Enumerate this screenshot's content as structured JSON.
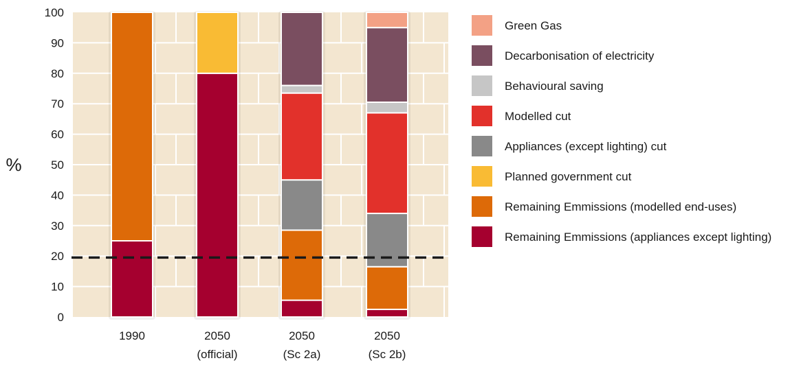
{
  "chart_data": {
    "type": "bar",
    "stacked": true,
    "title": "",
    "xlabel": "",
    "ylabel": "%",
    "ylim": [
      0,
      100
    ],
    "yticks": [
      0,
      10,
      20,
      30,
      40,
      50,
      60,
      70,
      80,
      90,
      100
    ],
    "reference_line": {
      "y": 19.5,
      "style": "dashed"
    },
    "categories": [
      {
        "line1": "1990",
        "line2": ""
      },
      {
        "line1": "2050",
        "line2": "(official)"
      },
      {
        "line1": "2050",
        "line2": "(Sc 2a)"
      },
      {
        "line1": "2050",
        "line2": "(Sc 2b)"
      }
    ],
    "series": [
      {
        "name": "Remaining Emmissions (appliances except lighting)",
        "color": "#a5002f",
        "values": [
          25,
          80,
          5.5,
          2.5
        ]
      },
      {
        "name": "Remaining Emmissions (modelled end-uses)",
        "color": "#dd6a08",
        "values": [
          75,
          0,
          23,
          14
        ]
      },
      {
        "name": "Planned government cut",
        "color": "#f9bb34",
        "values": [
          0,
          20,
          0,
          0
        ]
      },
      {
        "name": "Appliances (except lighting) cut",
        "color": "#898989",
        "values": [
          0,
          0,
          16.5,
          17.5
        ]
      },
      {
        "name": "Modelled cut",
        "color": "#e2312b",
        "values": [
          0,
          0,
          28.5,
          33
        ]
      },
      {
        "name": "Behavioural saving",
        "color": "#c6c6c6",
        "values": [
          0,
          0,
          2.5,
          3.5
        ]
      },
      {
        "name": "Decarbonisation of electricity",
        "color": "#7a4e60",
        "values": [
          0,
          0,
          24,
          24.5
        ]
      },
      {
        "name": "Green Gas",
        "color": "#f3a185",
        "values": [
          0,
          0,
          0,
          5
        ]
      }
    ],
    "legend_order": [
      7,
      6,
      5,
      4,
      3,
      2,
      1,
      0
    ],
    "legend_position": "right",
    "grid": true,
    "background": "#f3e6d0"
  }
}
